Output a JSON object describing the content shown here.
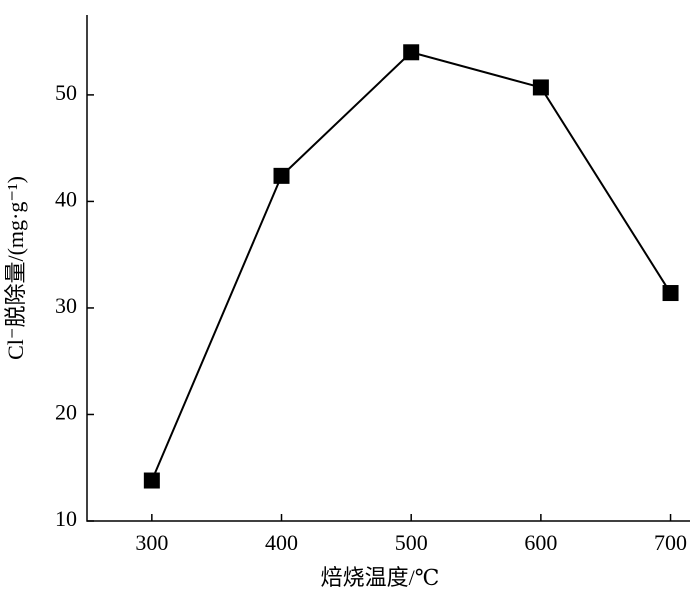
{
  "chart_data": {
    "type": "line",
    "x_label": "焙烧温度/℃",
    "y_label": "Cl⁻脱除量/(mg·g⁻¹)",
    "x": [
      300,
      400,
      500,
      600,
      700
    ],
    "series": [
      {
        "color": "#000000",
        "values": [
          13.8,
          42.4,
          54.0,
          50.7,
          31.4
        ]
      }
    ],
    "xlim": [
      250,
      715
    ],
    "xticks": [
      300,
      400,
      500,
      600,
      700
    ],
    "ylim": [
      10,
      57.5
    ],
    "yticks": [
      10,
      20,
      30,
      40,
      50
    ],
    "grid": false
  }
}
